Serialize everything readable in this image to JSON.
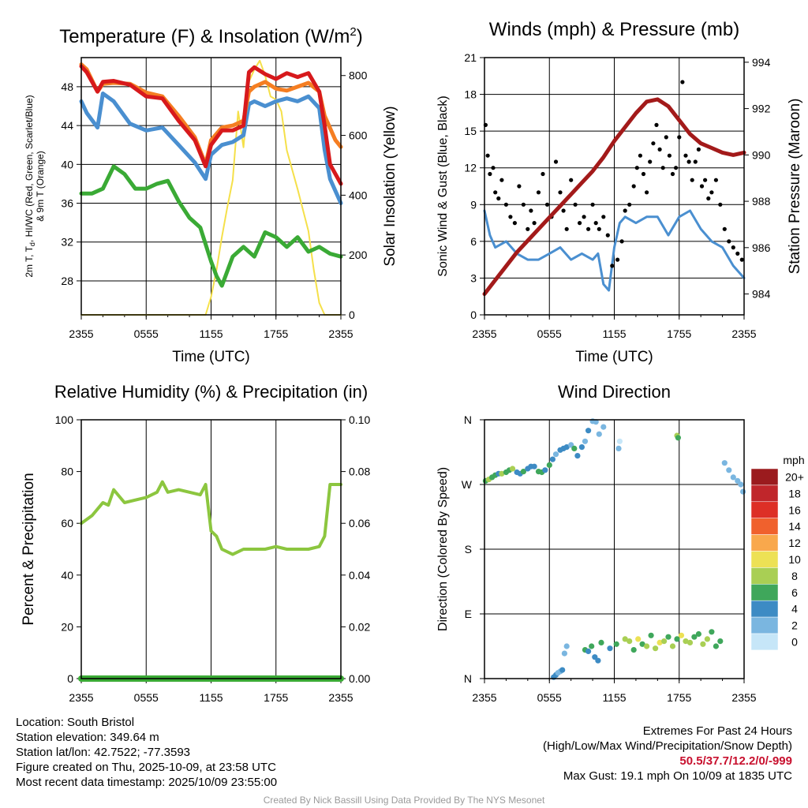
{
  "colors": {
    "red": "#d7191c",
    "orange": "#f57e22",
    "blue": "#4a8fd0",
    "green": "#3aaa35",
    "yellow": "#f5e04a",
    "maroon": "#a31a1a",
    "rh_green": "#8cc63f",
    "precip_green": "#3aaa35"
  },
  "chart_data": [
    {
      "id": "temperature",
      "type": "line",
      "title": "Temperature (F) & Insolation (W/m",
      "title_sup": "2",
      "title_end": ")",
      "xlabel": "Time (UTC)",
      "ylabel_left_line1": "2m T, T",
      "ylabel_left_sub": "d",
      "ylabel_left_line1_end": ", HI/WC (Red, Green, Scarlet/Blue)",
      "ylabel_left_line2": "& 9m T (Orange)",
      "ylabel_right": "Solar Insolation (Yellow)",
      "x_ticks": [
        "2355",
        "0555",
        "1155",
        "1755",
        "2355"
      ],
      "x_range_hours": [
        0,
        24
      ],
      "ylim": [
        24.5,
        51
      ],
      "y_ticks": [
        "28",
        "32",
        "36",
        "40",
        "44",
        "48"
      ],
      "y2lim": [
        0,
        860
      ],
      "y2_ticks": [
        "0",
        "200",
        "400",
        "600",
        "800"
      ],
      "series": [
        {
          "name": "9m T",
          "color": "orange",
          "x": [
            0,
            0.5,
            1.5,
            2,
            3,
            4.5,
            6,
            7.5,
            9,
            10.5,
            11.5,
            12,
            13,
            14,
            15,
            15.5,
            16,
            17,
            18,
            19,
            20,
            21,
            22,
            22.5,
            23.5,
            24
          ],
          "y": [
            50.3,
            49.8,
            47.5,
            48.3,
            48.4,
            48.3,
            47.4,
            47.0,
            45.0,
            42.8,
            40.0,
            42.5,
            43.8,
            44.0,
            44.5,
            47.5,
            48.0,
            48.5,
            47.8,
            47.6,
            48.0,
            48.4,
            47.5,
            45.0,
            42.5,
            41.8
          ]
        },
        {
          "name": "2m T",
          "color": "red",
          "x": [
            0,
            0.5,
            1.5,
            2,
            3,
            4.5,
            6,
            7.5,
            9,
            10.5,
            11.5,
            12,
            13,
            14,
            15,
            15.5,
            16,
            17,
            18,
            19,
            20,
            21,
            22,
            22.5,
            23,
            24
          ],
          "y": [
            50.1,
            49.5,
            47.5,
            48.5,
            48.6,
            48.2,
            47.0,
            46.8,
            44.5,
            42.5,
            39.8,
            42.0,
            43.5,
            43.5,
            44.0,
            49.5,
            50.0,
            49.3,
            48.8,
            49.4,
            49.0,
            49.4,
            47.5,
            44.0,
            40.0,
            38.0
          ]
        },
        {
          "name": "HI/WC",
          "color": "blue",
          "x": [
            0,
            0.5,
            1.5,
            2,
            3,
            4.5,
            6,
            7.5,
            9,
            10.5,
            11.5,
            12,
            13,
            14,
            15,
            15.5,
            16,
            17,
            18,
            19,
            20,
            21,
            22,
            22.5,
            23,
            24
          ],
          "y": [
            46.5,
            45.3,
            43.8,
            47.3,
            46.5,
            44.2,
            43.5,
            43.8,
            42.0,
            40.2,
            38.5,
            41.0,
            42.0,
            42.3,
            43.0,
            46.2,
            46.5,
            46.0,
            46.5,
            46.8,
            46.5,
            47.0,
            45.8,
            41.5,
            38.5,
            36.0
          ]
        },
        {
          "name": "Td",
          "color": "green",
          "x": [
            0,
            1,
            2,
            3,
            4,
            5,
            6,
            7,
            8,
            9,
            10,
            11,
            12,
            12.5,
            13,
            13.5,
            14,
            15,
            16,
            17,
            18,
            19,
            20,
            21,
            22,
            23,
            24
          ],
          "y": [
            37.0,
            37.0,
            37.5,
            39.8,
            39.0,
            37.5,
            37.5,
            38.0,
            38.3,
            36.2,
            34.5,
            33.5,
            30.0,
            28.5,
            27.5,
            29.0,
            30.5,
            31.5,
            30.5,
            33.0,
            32.5,
            31.5,
            32.5,
            31.0,
            31.5,
            30.8,
            30.5
          ]
        },
        {
          "name": "Solar",
          "color": "yellow",
          "axis": "right",
          "x": [
            0,
            11.5,
            12,
            12.5,
            13,
            13.5,
            14,
            14.5,
            15,
            15.5,
            16,
            16.5,
            17,
            17.5,
            18,
            18.5,
            19,
            20,
            21,
            21.5,
            22,
            22.5,
            24
          ],
          "y": [
            0,
            0,
            60,
            150,
            260,
            360,
            450,
            680,
            560,
            780,
            820,
            850,
            800,
            730,
            720,
            680,
            550,
            420,
            280,
            150,
            40,
            0,
            0
          ]
        }
      ]
    },
    {
      "id": "winds",
      "type": "line",
      "title": "Winds (mph) & Pressure (mb)",
      "xlabel": "Time (UTC)",
      "ylabel_left": "Sonic Wind & Gust (Blue, Black)",
      "ylabel_right": "Station Pressure (Maroon)",
      "x_ticks": [
        "2355",
        "0555",
        "1155",
        "1755",
        "2355"
      ],
      "x_range_hours": [
        0,
        24
      ],
      "ylim": [
        0,
        21
      ],
      "y_ticks": [
        "0",
        "3",
        "6",
        "9",
        "12",
        "15",
        "18",
        "21"
      ],
      "y2lim": [
        983.1,
        994.2
      ],
      "y2_ticks": [
        "984",
        "986",
        "988",
        "990",
        "992",
        "994"
      ],
      "series": [
        {
          "name": "Sonic Wind",
          "color": "blue",
          "x": [
            0,
            0.5,
            1,
            2,
            3,
            4,
            5,
            6,
            7,
            8,
            9,
            10,
            10.5,
            11,
            11.5,
            12,
            12.5,
            13,
            14,
            15,
            16,
            17,
            18,
            19,
            20,
            21,
            22,
            23,
            24
          ],
          "y": [
            8.5,
            6.5,
            5.5,
            6.0,
            5.0,
            4.5,
            4.5,
            5.0,
            5.5,
            4.5,
            5.0,
            4.5,
            5.0,
            2.5,
            2.0,
            5.5,
            7.5,
            8.0,
            7.5,
            8.0,
            8.0,
            6.5,
            8.0,
            8.5,
            7.0,
            6.0,
            5.5,
            4.0,
            3.0
          ]
        },
        {
          "name": "Pressure",
          "color": "maroon",
          "axis": "right",
          "x": [
            0,
            1,
            2,
            3,
            4,
            5,
            6,
            7,
            8,
            9,
            10,
            11,
            12,
            13,
            14,
            15,
            16,
            17,
            18,
            19,
            20,
            21,
            22,
            23,
            24
          ],
          "y": [
            984.0,
            984.6,
            985.2,
            985.8,
            986.3,
            986.8,
            987.3,
            987.8,
            988.3,
            988.8,
            989.3,
            989.9,
            990.6,
            991.2,
            991.8,
            992.3,
            992.4,
            992.1,
            991.5,
            990.9,
            990.5,
            990.3,
            990.1,
            990.0,
            990.1
          ]
        }
      ],
      "gust_points": {
        "name": "Gust",
        "color": "black",
        "x": [
          0.1,
          0.3,
          0.5,
          0.8,
          1.0,
          1.3,
          1.6,
          2.0,
          2.4,
          2.8,
          3.2,
          3.6,
          4.0,
          4.3,
          4.6,
          5.0,
          5.4,
          5.8,
          6.2,
          6.6,
          7.0,
          7.3,
          7.6,
          8.0,
          8.4,
          8.8,
          9.2,
          9.6,
          10.0,
          10.3,
          10.6,
          11.0,
          11.4,
          11.8,
          12.3,
          12.7,
          13.0,
          13.4,
          13.8,
          14.1,
          14.4,
          14.7,
          15.0,
          15.3,
          15.6,
          15.9,
          16.2,
          16.5,
          16.8,
          17.1,
          17.4,
          17.7,
          18.0,
          18.3,
          18.6,
          18.9,
          19.2,
          19.5,
          19.8,
          20.1,
          20.4,
          20.7,
          21.0,
          21.4,
          21.8,
          22.2,
          22.6,
          23.0,
          23.4,
          23.8
        ],
        "y": [
          15.5,
          13.0,
          11.5,
          12.0,
          10.0,
          9.5,
          11.0,
          9.0,
          8.0,
          7.5,
          10.5,
          9.0,
          7.0,
          8.5,
          7.5,
          10.0,
          11.5,
          9.0,
          8.0,
          12.5,
          10.0,
          8.5,
          7.0,
          11.0,
          9.0,
          7.5,
          8.0,
          7.0,
          9.0,
          7.5,
          7.0,
          8.0,
          6.5,
          4.0,
          4.5,
          6.0,
          8.5,
          9.0,
          10.5,
          12.0,
          13.0,
          11.5,
          10.0,
          12.5,
          14.0,
          15.5,
          13.5,
          12.0,
          14.5,
          13.0,
          11.5,
          12.0,
          14.5,
          19.0,
          13.0,
          12.5,
          11.0,
          12.5,
          13.5,
          10.5,
          11.0,
          9.5,
          10.0,
          11.0,
          9.0,
          7.0,
          6.0,
          5.5,
          5.0,
          4.5
        ]
      }
    },
    {
      "id": "humidity",
      "type": "line",
      "title": "Relative Humidity (%) & Precipitation (in)",
      "xlabel": "",
      "ylabel_left": "Percent & Precipitation",
      "x_ticks": [
        "2355",
        "0555",
        "1155",
        "1755",
        "2355"
      ],
      "x_range_hours": [
        0,
        24
      ],
      "ylim": [
        0,
        100
      ],
      "y_ticks": [
        "0",
        "20",
        "40",
        "60",
        "80",
        "100"
      ],
      "y2lim": [
        0,
        0.1
      ],
      "y2_ticks": [
        "0.00",
        "0.02",
        "0.04",
        "0.06",
        "0.08",
        "0.10"
      ],
      "series": [
        {
          "name": "RH",
          "color": "rh_green",
          "x": [
            0,
            1,
            2,
            2.5,
            3,
            4,
            5,
            6,
            7,
            7.5,
            8,
            9,
            10,
            11,
            11.5,
            12,
            12.5,
            13,
            14,
            15,
            16,
            17,
            18,
            19,
            20,
            21,
            22,
            22.5,
            23,
            24
          ],
          "y": [
            60,
            63,
            68,
            67,
            73,
            68,
            69,
            70,
            72,
            76,
            72,
            73,
            72,
            71,
            75,
            57,
            55,
            50,
            48,
            50,
            50,
            50,
            51,
            50,
            50,
            50,
            51,
            55,
            75,
            75
          ]
        },
        {
          "name": "Precip",
          "color": "precip_green",
          "axis": "right",
          "x": [
            0,
            24
          ],
          "y": [
            0,
            0
          ]
        }
      ]
    },
    {
      "id": "direction",
      "type": "scatter",
      "title": "Wind Direction",
      "xlabel": "",
      "ylabel_left": "Direction (Colored By Speed)",
      "x_ticks": [
        "2355",
        "0555",
        "1155",
        "1755",
        "2355"
      ],
      "x_range_hours": [
        0,
        24
      ],
      "y_tick_labels": [
        "N",
        "E",
        "S",
        "W",
        "N"
      ],
      "ylim_degrees": [
        0,
        360
      ],
      "legend_title": "mph",
      "legend_labels": [
        "20+",
        "18",
        "16",
        "14",
        "12",
        "10",
        "8",
        "6",
        "4",
        "2",
        "0"
      ],
      "legend_colors": [
        "#9b1b1e",
        "#c0262b",
        "#dd2f26",
        "#f0612d",
        "#f9a84c",
        "#ede155",
        "#a9cf54",
        "#3fa75b",
        "#3d8bc4",
        "#7ab6e0",
        "#c6e6f8"
      ],
      "points_x": [
        0.1,
        0.4,
        0.7,
        1.0,
        1.3,
        1.6,
        2.0,
        2.3,
        2.6,
        3.0,
        3.3,
        3.6,
        4.0,
        4.3,
        4.6,
        5.0,
        5.3,
        5.6,
        6.0,
        6.3,
        6.6,
        7.0,
        7.3,
        7.6,
        8.0,
        8.3,
        8.6,
        9.0,
        9.3,
        9.6,
        10.0,
        10.3,
        10.6,
        11.0,
        12.4,
        12.5,
        6.4,
        6.6,
        6.8,
        7.0,
        7.2,
        7.4,
        7.6,
        9.3,
        9.6,
        9.9,
        10.2,
        10.5,
        10.8,
        11.6,
        12.2,
        13.0,
        13.4,
        13.8,
        14.2,
        14.6,
        15.0,
        15.4,
        15.8,
        16.2,
        16.6,
        17.0,
        17.4,
        17.8,
        18.2,
        18.6,
        19.0,
        19.4,
        19.8,
        20.2,
        20.6,
        21.0,
        21.4,
        21.8,
        22.2,
        22.6,
        23.0,
        23.4,
        23.7,
        23.9,
        17.8,
        17.9
      ],
      "points_y": [
        275,
        277,
        280,
        283,
        285,
        285,
        287,
        290,
        292,
        287,
        285,
        288,
        292,
        295,
        295,
        288,
        287,
        290,
        297,
        305,
        312,
        318,
        320,
        322,
        325,
        320,
        310,
        322,
        330,
        345,
        358,
        357,
        340,
        350,
        320,
        330,
        2,
        5,
        8,
        10,
        12,
        35,
        45,
        40,
        38,
        45,
        30,
        25,
        50,
        42,
        48,
        55,
        52,
        40,
        55,
        48,
        45,
        60,
        42,
        50,
        52,
        58,
        45,
        55,
        60,
        52,
        50,
        58,
        62,
        48,
        55,
        65,
        45,
        52,
        300,
        290,
        280,
        275,
        270,
        260,
        338,
        335
      ],
      "points_speed": [
        7,
        8,
        7,
        6,
        5,
        8,
        7,
        6,
        9,
        4,
        5,
        6,
        4,
        5,
        5,
        7,
        7,
        4,
        6,
        4,
        3,
        5,
        4,
        5,
        3,
        6,
        5,
        4,
        3,
        5,
        2,
        3,
        2,
        2,
        2,
        1,
        4,
        5,
        2,
        3,
        4,
        2,
        3,
        6,
        5,
        7,
        4,
        4,
        6,
        5,
        7,
        8,
        9,
        6,
        10,
        7,
        8,
        7,
        9,
        11,
        8,
        6,
        9,
        7,
        10,
        8,
        9,
        7,
        6,
        8,
        9,
        6,
        7,
        7,
        3,
        2,
        2,
        2,
        2,
        3,
        8,
        7
      ]
    }
  ],
  "info": {
    "location": "Location: South Bristol",
    "elevation": "Station elevation: 349.64 m",
    "latlon": "Station lat/lon: 42.7522; -77.3593",
    "created": "Figure created on Thu, 2025-10-09, at 23:58 UTC",
    "recent": "Most recent data timestamp: 2025/10/09 23:55:00"
  },
  "extremes": {
    "title": "Extremes For Past 24 Hours",
    "subtitle": "(High/Low/Max Wind/Precipitation/Snow Depth)",
    "values": "50.5/37.7/12.2/0/-999",
    "max_gust": "Max Gust: 19.1 mph On 10/09 at 1835 UTC"
  },
  "credit": "Created By Nick Bassill Using Data Provided By The NYS Mesonet"
}
